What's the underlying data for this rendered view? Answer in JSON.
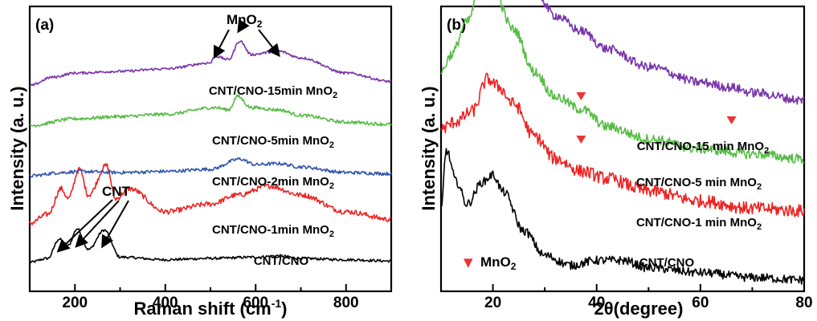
{
  "colors": {
    "black": "#000000",
    "red": "#ee2222",
    "blue": "#3355aa",
    "green": "#55bb44",
    "purple": "#7733aa",
    "marker": "#ee3333"
  },
  "chart_data": [
    {
      "panel": "(a)",
      "type": "line",
      "xlabel": "Raman shift (cm",
      "xlabel_sup": "-1",
      "xlabel_tail": ")",
      "ylabel": "Intensity (a. u.)",
      "xlim": [
        100,
        900
      ],
      "xticks": [
        200,
        400,
        600,
        800
      ],
      "grid": false,
      "y_ticks_shown": false,
      "annotations": [
        {
          "text_main": "MnO",
          "text_sub": "2",
          "arrows_to_x": [
            510,
            565,
            650
          ]
        },
        {
          "text_main": "CNT",
          "arrows_to_x": [
            165,
            205,
            265
          ]
        }
      ],
      "series": [
        {
          "name": "CNT/CNO",
          "name_sub": "",
          "color": "black",
          "x": [
            100,
            140,
            165,
            185,
            205,
            230,
            265,
            300,
            400,
            500,
            600,
            650,
            700,
            800,
            900
          ],
          "y": [
            0.02,
            0.05,
            0.2,
            0.15,
            0.28,
            0.12,
            0.27,
            0.06,
            0.04,
            0.05,
            0.06,
            0.07,
            0.05,
            0.04,
            0.03
          ]
        },
        {
          "name": "CNT/CNO-1min MnO",
          "name_sub": "2",
          "color": "red",
          "x": [
            100,
            140,
            170,
            185,
            210,
            230,
            270,
            290,
            320,
            400,
            500,
            560,
            630,
            700,
            800,
            900
          ],
          "y": [
            0.03,
            0.1,
            0.3,
            0.22,
            0.45,
            0.25,
            0.48,
            0.22,
            0.3,
            0.12,
            0.18,
            0.25,
            0.32,
            0.25,
            0.12,
            0.06
          ]
        },
        {
          "name": "CNT/CNO-2min MnO",
          "name_sub": "2",
          "color": "blue",
          "x": [
            100,
            170,
            210,
            300,
            400,
            500,
            565,
            600,
            650,
            700,
            800,
            900
          ],
          "y": [
            0.02,
            0.05,
            0.06,
            0.05,
            0.06,
            0.08,
            0.17,
            0.12,
            0.13,
            0.1,
            0.05,
            0.04
          ]
        },
        {
          "name": "CNT/CNO-5min MnO",
          "name_sub": "2",
          "color": "green",
          "x": [
            100,
            200,
            300,
            400,
            510,
            540,
            560,
            590,
            650,
            700,
            800,
            900
          ],
          "y": [
            0.04,
            0.1,
            0.12,
            0.14,
            0.2,
            0.18,
            0.3,
            0.2,
            0.18,
            0.13,
            0.07,
            0.05
          ]
        },
        {
          "name": "CNT/CNO-15min MnO",
          "name_sub": "2",
          "color": "purple",
          "x": [
            100,
            150,
            200,
            300,
            400,
            500,
            510,
            540,
            565,
            590,
            650,
            700,
            800,
            900
          ],
          "y": [
            0.05,
            0.15,
            0.2,
            0.22,
            0.25,
            0.32,
            0.4,
            0.36,
            0.58,
            0.42,
            0.46,
            0.38,
            0.2,
            0.1
          ]
        }
      ]
    },
    {
      "panel": "(b)",
      "type": "line",
      "xlabel": "2θ(degree)",
      "ylabel": "Intensity (a. u.)",
      "xlim": [
        10,
        80
      ],
      "xticks": [
        20,
        40,
        60,
        80
      ],
      "grid": false,
      "y_ticks_shown": false,
      "legend": {
        "marker": "▼",
        "text_main": "MnO",
        "text_sub": "2",
        "placement": "bottom-left"
      },
      "markers_x": [
        37,
        66
      ],
      "series": [
        {
          "name": "CNT/CNO",
          "name_sub": "",
          "color": "black",
          "x": [
            10,
            11,
            13,
            15,
            18,
            20,
            22,
            26,
            30,
            35,
            40,
            45,
            50,
            60,
            70,
            80
          ],
          "y": [
            0.3,
            0.55,
            0.42,
            0.33,
            0.42,
            0.45,
            0.38,
            0.22,
            0.12,
            0.08,
            0.1,
            0.1,
            0.07,
            0.05,
            0.03,
            0.02
          ]
        },
        {
          "name": "CNT/CNO-1 min MnO",
          "name_sub": "2",
          "color": "red",
          "x": [
            10,
            13,
            16,
            19,
            21,
            24,
            28,
            32,
            37,
            42,
            50,
            60,
            70,
            80
          ],
          "y": [
            0.45,
            0.48,
            0.52,
            0.65,
            0.62,
            0.55,
            0.42,
            0.33,
            0.28,
            0.25,
            0.2,
            0.16,
            0.13,
            0.12
          ]
        },
        {
          "name": "CNT/CNO-5 min MnO",
          "name_sub": "2",
          "color": "green",
          "x": [
            10,
            12,
            15,
            18,
            20,
            24,
            28,
            32,
            37,
            42,
            50,
            60,
            70,
            80
          ],
          "y": [
            0.55,
            0.62,
            0.75,
            0.92,
            0.88,
            0.72,
            0.55,
            0.45,
            0.4,
            0.33,
            0.28,
            0.24,
            0.22,
            0.2
          ]
        },
        {
          "name": "CNT/CNO-15 min MnO",
          "name_sub": "2",
          "color": "purple",
          "x": [
            10,
            12,
            15,
            18,
            20,
            24,
            28,
            32,
            37,
            42,
            50,
            60,
            66,
            70,
            80
          ],
          "y": [
            0.7,
            0.72,
            0.82,
            1.0,
            0.97,
            0.85,
            0.68,
            0.58,
            0.52,
            0.45,
            0.38,
            0.32,
            0.3,
            0.28,
            0.25
          ]
        }
      ]
    }
  ]
}
